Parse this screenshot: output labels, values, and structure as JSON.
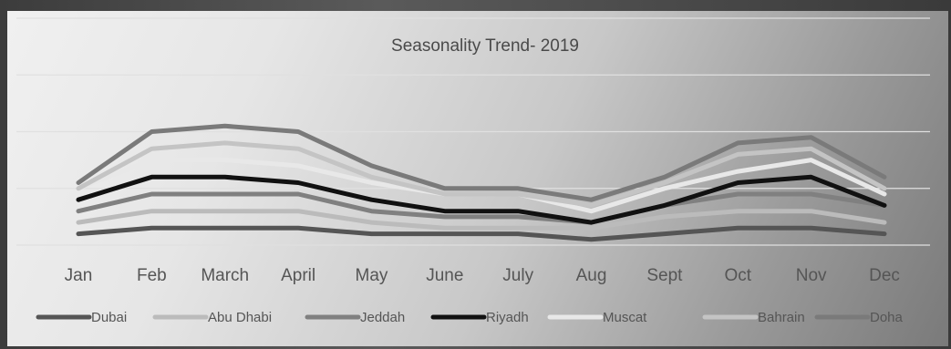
{
  "chart_data": {
    "type": "line",
    "title": "Seasonality Trend- 2019",
    "xlabel": "",
    "ylabel": "",
    "categories": [
      "Jan",
      "Feb",
      "March",
      "April",
      "May",
      "June",
      "July",
      "Aug",
      "Sept",
      "Oct",
      "Nov",
      "Dec"
    ],
    "ylim": [
      0,
      4
    ],
    "grid": true,
    "legend_position": "bottom",
    "series": [
      {
        "name": "Dubai",
        "color": "#555555",
        "values": [
          0.2,
          0.3,
          0.3,
          0.3,
          0.2,
          0.2,
          0.2,
          0.1,
          0.2,
          0.3,
          0.3,
          0.2
        ]
      },
      {
        "name": "Abu Dhabi",
        "color": "#bbbbbb",
        "values": [
          0.4,
          0.6,
          0.6,
          0.6,
          0.4,
          0.3,
          0.3,
          0.3,
          0.5,
          0.6,
          0.6,
          0.4
        ]
      },
      {
        "name": "Jeddah",
        "color": "#808080",
        "values": [
          0.6,
          0.9,
          0.9,
          0.9,
          0.6,
          0.5,
          0.5,
          0.4,
          0.7,
          0.9,
          0.9,
          0.7
        ]
      },
      {
        "name": "Riyadh",
        "color": "#111111",
        "values": [
          0.8,
          1.2,
          1.2,
          1.1,
          0.8,
          0.6,
          0.6,
          0.4,
          0.7,
          1.1,
          1.2,
          0.7
        ]
      },
      {
        "name": "Muscat",
        "color": "#e8e8e8",
        "values": [
          1.0,
          1.5,
          1.5,
          1.4,
          1.1,
          0.9,
          0.9,
          0.6,
          1.0,
          1.3,
          1.5,
          0.9
        ]
      },
      {
        "name": "Bahrain",
        "color": "#c4c4c4",
        "values": [
          1.0,
          1.7,
          1.8,
          1.7,
          1.2,
          0.9,
          0.9,
          0.7,
          1.1,
          1.6,
          1.7,
          1.0
        ]
      },
      {
        "name": "Doha",
        "color": "#7a7a7a",
        "values": [
          1.1,
          2.0,
          2.1,
          2.0,
          1.4,
          1.0,
          1.0,
          0.8,
          1.2,
          1.8,
          1.9,
          1.2
        ]
      }
    ]
  }
}
